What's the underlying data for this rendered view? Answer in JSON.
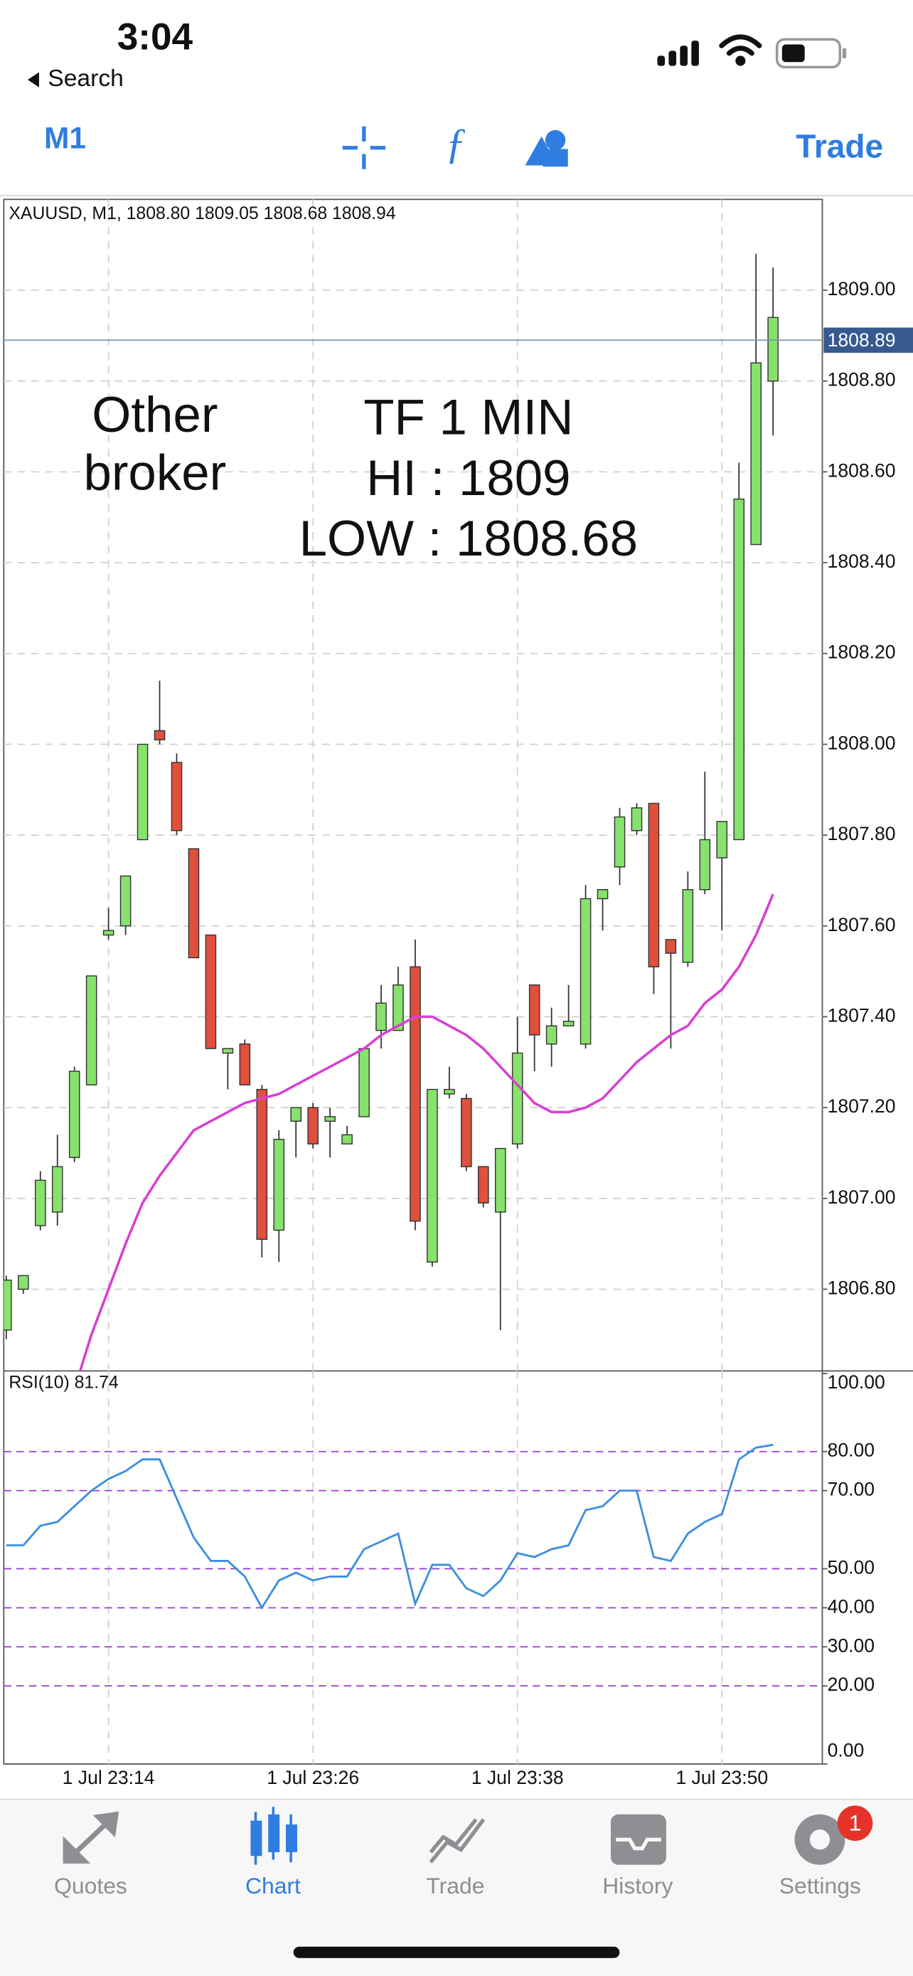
{
  "status_bar": {
    "time": "3:04",
    "back": "Search"
  },
  "toolbar": {
    "timeframe": "M1",
    "trade": "Trade"
  },
  "chart_data": [
    {
      "type": "candlestick",
      "header": "XAUUSD, M1, 1808.80 1809.05 1808.68 1808.94",
      "categories": [
        null,
        null,
        null,
        null,
        null,
        null,
        "1 Jul 23:14",
        null,
        null,
        null,
        null,
        null,
        null,
        null,
        null,
        null,
        null,
        null,
        "1 Jul 23:26",
        null,
        null,
        null,
        null,
        null,
        null,
        null,
        null,
        null,
        null,
        null,
        "1 Jul 23:38",
        null,
        null,
        null,
        null,
        null,
        null,
        null,
        null,
        null,
        null,
        null,
        "1 Jul 23:50",
        null,
        null,
        null
      ],
      "open": [
        1806.71,
        1806.8,
        1806.94,
        1806.97,
        1807.09,
        1807.25,
        1807.58,
        1807.6,
        1807.79,
        1808.03,
        1807.96,
        1807.77,
        1807.58,
        1807.32,
        1807.34,
        1807.24,
        1806.93,
        1807.17,
        1807.2,
        1807.17,
        1807.12,
        1807.18,
        1807.37,
        1807.37,
        1807.51,
        1806.86,
        1807.23,
        1807.22,
        1807.07,
        1806.97,
        1807.12,
        1807.47,
        1807.34,
        1807.38,
        1807.34,
        1807.66,
        1807.73,
        1807.81,
        1807.87,
        1807.57,
        1807.52,
        1807.68,
        1807.75,
        1807.79,
        1808.44,
        1808.8
      ],
      "high": [
        1806.83,
        1806.83,
        1807.06,
        1807.14,
        1807.29,
        1807.49,
        1807.64,
        1807.71,
        1808.0,
        1808.14,
        1807.98,
        1807.77,
        1807.58,
        1807.33,
        1807.35,
        1807.25,
        1807.15,
        1807.2,
        1807.21,
        1807.2,
        1807.16,
        1807.33,
        1807.47,
        1807.51,
        1807.57,
        1807.24,
        1807.29,
        1807.23,
        1807.07,
        1807.11,
        1807.4,
        1807.47,
        1807.42,
        1807.47,
        1807.69,
        1807.68,
        1807.86,
        1807.87,
        1807.87,
        1807.57,
        1807.72,
        1807.94,
        1807.83,
        1808.62,
        1809.08,
        1809.05
      ],
      "low": [
        1806.69,
        1806.79,
        1806.93,
        1806.94,
        1807.08,
        1807.25,
        1807.57,
        1807.58,
        1807.79,
        1808.0,
        1807.8,
        1807.53,
        1807.33,
        1807.24,
        1807.25,
        1806.87,
        1806.86,
        1807.09,
        1807.11,
        1807.09,
        1807.12,
        1807.18,
        1807.33,
        1807.37,
        1806.93,
        1806.85,
        1807.22,
        1807.06,
        1806.98,
        1806.71,
        1807.11,
        1807.28,
        1807.29,
        1807.38,
        1807.33,
        1807.59,
        1807.69,
        1807.8,
        1807.45,
        1807.33,
        1807.51,
        1807.67,
        1807.59,
        1807.79,
        1808.44,
        1808.68
      ],
      "close": [
        1806.82,
        1806.83,
        1807.04,
        1807.07,
        1807.28,
        1807.49,
        1807.59,
        1807.71,
        1808.0,
        1808.01,
        1807.81,
        1807.53,
        1807.33,
        1807.33,
        1807.25,
        1806.91,
        1807.13,
        1807.2,
        1807.12,
        1807.18,
        1807.14,
        1807.33,
        1807.43,
        1807.47,
        1806.95,
        1807.24,
        1807.24,
        1807.07,
        1806.99,
        1807.11,
        1807.32,
        1807.36,
        1807.38,
        1807.39,
        1807.66,
        1807.68,
        1807.84,
        1807.86,
        1807.51,
        1807.54,
        1807.68,
        1807.79,
        1807.83,
        1808.54,
        1808.84,
        1808.94
      ],
      "up_color": "#86e26c",
      "down_color": "#e0503c",
      "moving_average": {
        "color": "#d83fd3",
        "values": [
          null,
          null,
          null,
          null,
          1806.58,
          1806.7,
          1806.8,
          1806.9,
          1806.99,
          1807.05,
          1807.1,
          1807.15,
          1807.17,
          1807.19,
          1807.21,
          1807.22,
          1807.23,
          1807.25,
          1807.27,
          1807.29,
          1807.31,
          1807.33,
          1807.36,
          1807.38,
          1807.4,
          1807.4,
          1807.38,
          1807.36,
          1807.33,
          1807.29,
          1807.25,
          1807.21,
          1807.19,
          1807.19,
          1807.2,
          1807.22,
          1807.26,
          1807.3,
          1807.33,
          1807.36,
          1807.38,
          1807.43,
          1807.46,
          1807.51,
          1807.58,
          1807.67
        ]
      },
      "last_price": 1808.89,
      "ylim": [
        1806.62,
        1809.2
      ],
      "yticks": [
        {
          "value": 1809,
          "label": "1809.00"
        },
        {
          "value": 1808.8,
          "label": "1808.80"
        },
        {
          "value": 1808.6,
          "label": "1808.60"
        },
        {
          "value": 1808.4,
          "label": "1808.40"
        },
        {
          "value": 1808.2,
          "label": "1808.20"
        },
        {
          "value": 1808,
          "label": "1808.00"
        },
        {
          "value": 1807.8,
          "label": "1807.80"
        },
        {
          "value": 1807.6,
          "label": "1807.60"
        },
        {
          "value": 1807.4,
          "label": "1807.40"
        },
        {
          "value": 1807.2,
          "label": "1807.20"
        },
        {
          "value": 1807,
          "label": "1807.00"
        },
        {
          "value": 1806.8,
          "label": "1806.80"
        }
      ],
      "grid": true,
      "annotations": [
        {
          "lines": [
            "Other",
            "broker"
          ]
        },
        {
          "lines": [
            "TF 1 MIN",
            "HI : 1809",
            "LOW : 1808.68"
          ]
        }
      ]
    },
    {
      "type": "line",
      "header": "RSI(10) 81.74",
      "color": "#3d8ee0",
      "values": [
        56,
        56,
        61,
        62,
        66,
        70,
        73,
        75,
        78,
        78,
        68,
        58,
        52,
        52,
        48,
        40,
        47,
        49,
        47,
        48,
        48,
        55,
        57,
        59,
        41,
        51,
        51,
        45,
        43,
        47,
        54,
        53,
        55,
        56,
        65,
        66,
        70,
        70,
        53,
        52,
        59,
        62,
        64,
        78,
        81,
        81.74
      ],
      "ylim": [
        0,
        100
      ],
      "yticks": [
        {
          "value": 100,
          "label": "100.00"
        },
        {
          "value": 80,
          "label": "80.00"
        },
        {
          "value": 70,
          "label": "70.00"
        },
        {
          "value": 50,
          "label": "50.00"
        },
        {
          "value": 40,
          "label": "40.00"
        },
        {
          "value": 30,
          "label": "30.00"
        },
        {
          "value": 20,
          "label": "20.00"
        },
        {
          "value": 0,
          "label": "0.00"
        }
      ],
      "levels": [
        80,
        70,
        50,
        40,
        30,
        20
      ],
      "level_color": "#9b3fd0"
    }
  ],
  "tab_bar": {
    "tabs": [
      "Quotes",
      "Chart",
      "Trade",
      "History",
      "Settings"
    ],
    "active_tab": 1,
    "settings_badge": 1
  }
}
